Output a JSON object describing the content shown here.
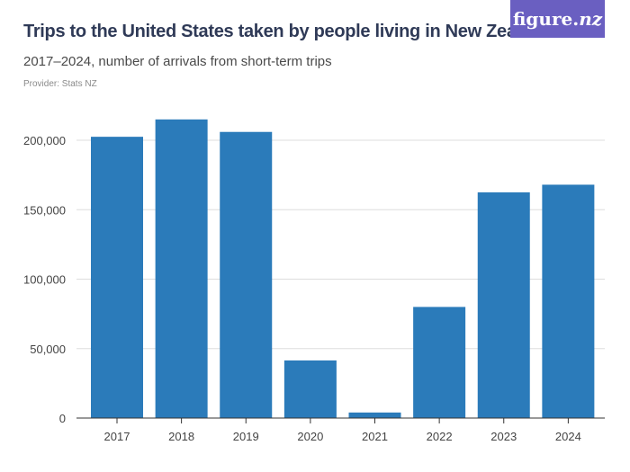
{
  "header": {
    "title": "Trips to the United States taken by people living in New Zealand",
    "subtitle": "2017–2024, number of arrivals from short-term trips",
    "provider": "Provider: Stats NZ",
    "logo_text": "figure.",
    "logo_text_italic": "nz"
  },
  "colors": {
    "bar": "#2b7bba",
    "grid": "#dddddd",
    "axis": "#333333",
    "logo_bg": "#6a5fc1"
  },
  "chart_data": {
    "type": "bar",
    "categories": [
      "2017",
      "2018",
      "2019",
      "2020",
      "2021",
      "2022",
      "2023",
      "2024"
    ],
    "values": [
      202500,
      215000,
      206000,
      41500,
      4000,
      80000,
      162500,
      168000
    ],
    "ylim": [
      0,
      200000
    ],
    "yticks": [
      0,
      50000,
      100000,
      150000,
      200000
    ],
    "ytick_labels": [
      "0",
      "50,000",
      "100,000",
      "150,000",
      "200,000"
    ],
    "grid": true
  }
}
